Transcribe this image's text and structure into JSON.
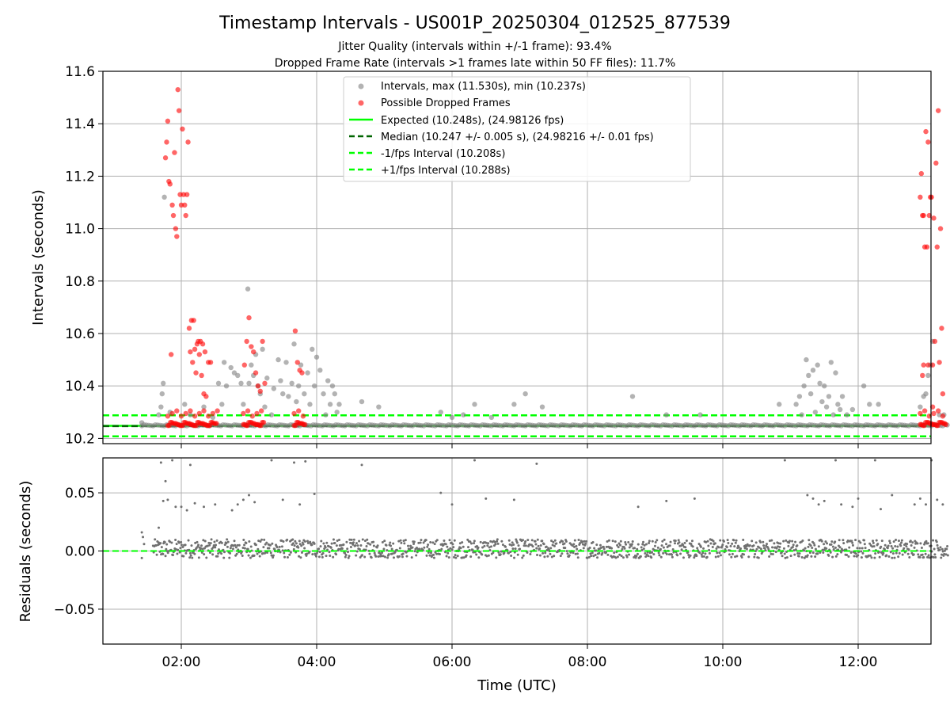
{
  "colors": {
    "intervals": "#808080",
    "dropped": "#ff0000",
    "expected": "#00ff00",
    "median": "#006400",
    "band": "#00ff00",
    "residual": "#707070",
    "grid": "#b0b0b0"
  },
  "chart_data": [
    {
      "type": "scatter",
      "title": "Timestamp Intervals - US001P_20250304_012525_877539",
      "subtitle_1": "Jitter Quality (intervals within +/-1 frame): 93.4%",
      "subtitle_2": "Dropped Frame Rate (intervals >1 frames late within 50 FF files): 11.7%",
      "xlabel": "",
      "ylabel": "Intervals (seconds)",
      "xlim": [
        "00:50",
        "13:00"
      ],
      "ylim": [
        10.18,
        11.6
      ],
      "xticks": [
        "02:00",
        "04:00",
        "06:00",
        "08:00",
        "10:00",
        "12:00"
      ],
      "yticks": [
        "10.2",
        "10.4",
        "10.6",
        "10.8",
        "11.0",
        "11.2",
        "11.4",
        "11.6"
      ],
      "grid": true,
      "legend_position": "top-center",
      "legend": [
        "Intervals, max (11.530s), min (10.237s)",
        "Possible Dropped Frames",
        "Expected (10.248s), (24.98126 fps)",
        "Median (10.247 +/- 0.005 s), (24.98216 +/- 0.01 fps)",
        "-1/fps Interval (10.208s)",
        "+1/fps Interval (10.288s)"
      ],
      "reference_lines": {
        "expected": 10.248,
        "median": 10.247,
        "minus_one_fps": 10.208,
        "plus_one_fps": 10.288
      },
      "series": [
        {
          "name": "Intervals, max (11.530s), min (10.237s)",
          "points": [
            [
              "01:25",
              10.26
            ],
            [
              "01:40",
              10.29
            ],
            [
              "01:42",
              10.32
            ],
            [
              "01:43",
              10.37
            ],
            [
              "01:44",
              10.41
            ],
            [
              "01:45",
              11.12
            ],
            [
              "01:50",
              10.3
            ],
            [
              "02:03",
              10.33
            ],
            [
              "02:08",
              10.29
            ],
            [
              "02:20",
              10.32
            ],
            [
              "02:28",
              10.28
            ],
            [
              "02:33",
              10.41
            ],
            [
              "02:36",
              10.33
            ],
            [
              "02:38",
              10.49
            ],
            [
              "02:40",
              10.4
            ],
            [
              "02:44",
              10.47
            ],
            [
              "02:47",
              10.45
            ],
            [
              "02:50",
              10.44
            ],
            [
              "02:53",
              10.41
            ],
            [
              "02:55",
              10.33
            ],
            [
              "02:59",
              10.77
            ],
            [
              "03:00",
              10.41
            ],
            [
              "03:02",
              10.48
            ],
            [
              "03:04",
              10.44
            ],
            [
              "03:06",
              10.52
            ],
            [
              "03:08",
              10.4
            ],
            [
              "03:10",
              10.37
            ],
            [
              "03:12",
              10.54
            ],
            [
              "03:14",
              10.32
            ],
            [
              "03:16",
              10.43
            ],
            [
              "03:20",
              10.29
            ],
            [
              "03:22",
              10.39
            ],
            [
              "03:26",
              10.5
            ],
            [
              "03:28",
              10.42
            ],
            [
              "03:30",
              10.37
            ],
            [
              "03:33",
              10.49
            ],
            [
              "03:35",
              10.36
            ],
            [
              "03:38",
              10.41
            ],
            [
              "03:40",
              10.56
            ],
            [
              "03:42",
              10.34
            ],
            [
              "03:44",
              10.4
            ],
            [
              "03:46",
              10.48
            ],
            [
              "03:49",
              10.37
            ],
            [
              "03:52",
              10.45
            ],
            [
              "03:54",
              10.33
            ],
            [
              "03:56",
              10.54
            ],
            [
              "03:58",
              10.4
            ],
            [
              "04:00",
              10.51
            ],
            [
              "04:03",
              10.46
            ],
            [
              "04:06",
              10.37
            ],
            [
              "04:08",
              10.29
            ],
            [
              "04:10",
              10.42
            ],
            [
              "04:12",
              10.33
            ],
            [
              "04:14",
              10.4
            ],
            [
              "04:16",
              10.37
            ],
            [
              "04:18",
              10.3
            ],
            [
              "04:20",
              10.33
            ],
            [
              "04:40",
              10.34
            ],
            [
              "04:55",
              10.32
            ],
            [
              "05:50",
              10.3
            ],
            [
              "06:00",
              10.28
            ],
            [
              "06:10",
              10.29
            ],
            [
              "06:20",
              10.33
            ],
            [
              "06:35",
              10.28
            ],
            [
              "06:55",
              10.33
            ],
            [
              "07:05",
              10.37
            ],
            [
              "07:20",
              10.32
            ],
            [
              "08:40",
              10.36
            ],
            [
              "09:10",
              10.29
            ],
            [
              "09:40",
              10.29
            ],
            [
              "10:50",
              10.33
            ],
            [
              "11:05",
              10.33
            ],
            [
              "11:08",
              10.36
            ],
            [
              "11:10",
              10.29
            ],
            [
              "11:12",
              10.4
            ],
            [
              "11:14",
              10.5
            ],
            [
              "11:16",
              10.44
            ],
            [
              "11:18",
              10.37
            ],
            [
              "11:20",
              10.46
            ],
            [
              "11:22",
              10.3
            ],
            [
              "11:24",
              10.48
            ],
            [
              "11:26",
              10.41
            ],
            [
              "11:28",
              10.34
            ],
            [
              "11:30",
              10.4
            ],
            [
              "11:32",
              10.32
            ],
            [
              "11:34",
              10.36
            ],
            [
              "11:36",
              10.49
            ],
            [
              "11:38",
              10.29
            ],
            [
              "11:40",
              10.45
            ],
            [
              "11:42",
              10.33
            ],
            [
              "11:44",
              10.31
            ],
            [
              "11:46",
              10.36
            ],
            [
              "11:50",
              10.29
            ],
            [
              "11:55",
              10.31
            ],
            [
              "12:05",
              10.4
            ],
            [
              "12:10",
              10.33
            ],
            [
              "12:18",
              10.33
            ],
            [
              "12:55",
              10.32
            ],
            [
              "12:58",
              10.36
            ],
            [
              "13:00",
              10.37
            ],
            [
              "13:02",
              10.44
            ],
            [
              "13:04",
              10.48
            ],
            [
              "13:06",
              10.57
            ],
            [
              "13:12",
              10.29
            ],
            [
              "13:16",
              10.29
            ]
          ]
        },
        {
          "name": "Possible Dropped Frames",
          "points": [
            [
              "01:46",
              11.27
            ],
            [
              "01:47",
              11.33
            ],
            [
              "01:48",
              11.41
            ],
            [
              "01:49",
              11.18
            ],
            [
              "01:50",
              11.17
            ],
            [
              "01:51",
              10.52
            ],
            [
              "01:52",
              11.09
            ],
            [
              "01:53",
              11.05
            ],
            [
              "01:54",
              11.29
            ],
            [
              "01:55",
              11.0
            ],
            [
              "01:56",
              10.97
            ],
            [
              "01:57",
              11.53
            ],
            [
              "01:58",
              11.45
            ],
            [
              "01:59",
              11.13
            ],
            [
              "02:00",
              11.09
            ],
            [
              "02:01",
              11.38
            ],
            [
              "02:02",
              11.13
            ],
            [
              "02:03",
              11.09
            ],
            [
              "02:04",
              11.05
            ],
            [
              "02:05",
              11.13
            ],
            [
              "02:06",
              11.33
            ],
            [
              "02:07",
              10.62
            ],
            [
              "02:08",
              10.53
            ],
            [
              "02:09",
              10.65
            ],
            [
              "02:10",
              10.49
            ],
            [
              "02:11",
              10.65
            ],
            [
              "02:12",
              10.54
            ],
            [
              "02:13",
              10.45
            ],
            [
              "02:14",
              10.56
            ],
            [
              "02:15",
              10.57
            ],
            [
              "02:16",
              10.52
            ],
            [
              "02:17",
              10.57
            ],
            [
              "02:18",
              10.44
            ],
            [
              "02:19",
              10.56
            ],
            [
              "02:20",
              10.37
            ],
            [
              "02:21",
              10.53
            ],
            [
              "02:22",
              10.36
            ],
            [
              "02:24",
              10.49
            ],
            [
              "02:26",
              10.49
            ],
            [
              "02:56",
              10.48
            ],
            [
              "02:58",
              10.57
            ],
            [
              "03:00",
              10.66
            ],
            [
              "03:02",
              10.55
            ],
            [
              "03:04",
              10.53
            ],
            [
              "03:06",
              10.45
            ],
            [
              "03:08",
              10.4
            ],
            [
              "03:10",
              10.38
            ],
            [
              "03:12",
              10.57
            ],
            [
              "03:14",
              10.41
            ],
            [
              "03:41",
              10.61
            ],
            [
              "03:43",
              10.49
            ],
            [
              "03:45",
              10.46
            ],
            [
              "03:47",
              10.45
            ],
            [
              "12:55",
              11.12
            ],
            [
              "12:56",
              11.21
            ],
            [
              "12:57",
              11.05
            ],
            [
              "12:58",
              11.05
            ],
            [
              "12:59",
              10.93
            ],
            [
              "13:00",
              11.37
            ],
            [
              "13:01",
              10.93
            ],
            [
              "13:02",
              11.33
            ],
            [
              "13:03",
              11.05
            ],
            [
              "13:04",
              11.12
            ],
            [
              "13:05",
              11.12
            ],
            [
              "13:06",
              10.48
            ],
            [
              "13:07",
              11.04
            ],
            [
              "13:08",
              10.57
            ],
            [
              "13:09",
              11.25
            ],
            [
              "13:10",
              10.93
            ],
            [
              "13:11",
              11.45
            ],
            [
              "13:12",
              10.49
            ],
            [
              "13:13",
              11.0
            ],
            [
              "13:14",
              10.62
            ],
            [
              "13:15",
              10.37
            ],
            [
              "12:58",
              10.48
            ],
            [
              "12:57",
              10.44
            ],
            [
              "13:06",
              10.32
            ],
            [
              "13:02",
              10.48
            ]
          ]
        }
      ]
    },
    {
      "type": "scatter",
      "title": "",
      "xlabel": "Time (UTC)",
      "ylabel": "Residuals (seconds)",
      "xlim": [
        "00:50",
        "13:00"
      ],
      "ylim": [
        -0.08,
        0.08
      ],
      "xticks": [
        "02:00",
        "04:00",
        "06:00",
        "08:00",
        "10:00",
        "12:00"
      ],
      "yticks": [
        "0.05",
        "0.00",
        "−0.05"
      ],
      "grid": true,
      "reference_line": 0.0,
      "series": [
        {
          "name": "",
          "note_points": [
            [
              "01:42",
              0.076
            ],
            [
              "01:44",
              0.043
            ],
            [
              "01:46",
              0.06
            ],
            [
              "01:48",
              0.044
            ],
            [
              "01:52",
              0.078
            ],
            [
              "01:55",
              0.038
            ],
            [
              "02:00",
              0.038
            ],
            [
              "02:05",
              0.035
            ],
            [
              "02:08",
              0.074
            ],
            [
              "02:12",
              0.041
            ],
            [
              "02:20",
              0.038
            ],
            [
              "02:30",
              0.04
            ],
            [
              "02:45",
              0.035
            ],
            [
              "02:50",
              0.04
            ],
            [
              "02:55",
              0.044
            ],
            [
              "03:00",
              0.048
            ],
            [
              "03:05",
              0.042
            ],
            [
              "03:20",
              0.078
            ],
            [
              "03:30",
              0.044
            ],
            [
              "03:40",
              0.076
            ],
            [
              "03:45",
              0.04
            ],
            [
              "03:50",
              0.077
            ],
            [
              "03:58",
              0.049
            ],
            [
              "04:40",
              0.074
            ],
            [
              "05:50",
              0.05
            ],
            [
              "06:00",
              0.04
            ],
            [
              "06:20",
              0.078
            ],
            [
              "06:30",
              0.045
            ],
            [
              "06:55",
              0.044
            ],
            [
              "07:15",
              0.075
            ],
            [
              "08:45",
              0.038
            ],
            [
              "09:10",
              0.043
            ],
            [
              "09:35",
              0.045
            ],
            [
              "10:55",
              0.078
            ],
            [
              "11:15",
              0.048
            ],
            [
              "11:20",
              0.045
            ],
            [
              "11:25",
              0.04
            ],
            [
              "11:30",
              0.043
            ],
            [
              "11:40",
              0.078
            ],
            [
              "11:45",
              0.04
            ],
            [
              "11:55",
              0.038
            ],
            [
              "12:00",
              0.045
            ],
            [
              "12:15",
              0.078
            ],
            [
              "12:20",
              0.036
            ],
            [
              "12:30",
              0.048
            ],
            [
              "12:50",
              0.04
            ],
            [
              "12:55",
              0.045
            ],
            [
              "13:00",
              0.04
            ],
            [
              "13:05",
              0.078
            ],
            [
              "13:10",
              0.044
            ],
            [
              "13:15",
              0.04
            ]
          ]
        }
      ]
    }
  ]
}
